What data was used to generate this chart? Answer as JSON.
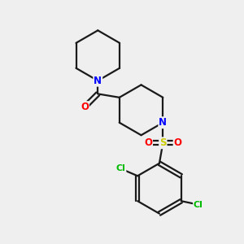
{
  "bg_color": "#efefef",
  "bond_color": "#1a1a1a",
  "bond_width": 1.6,
  "atom_colors": {
    "N": "#0000ff",
    "O": "#ff0000",
    "S": "#cccc00",
    "Cl": "#00bb00",
    "C": "#1a1a1a"
  },
  "figsize": [
    3.0,
    3.0
  ],
  "dpi": 100
}
